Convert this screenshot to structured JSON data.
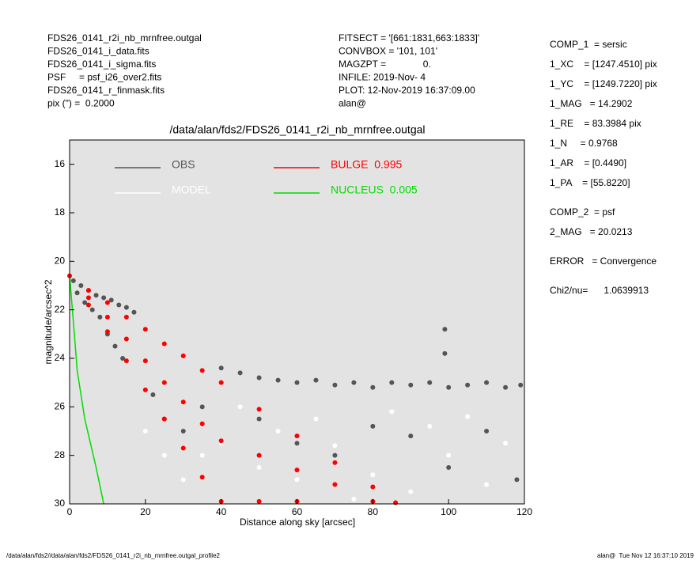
{
  "header": {
    "left": [
      "FDS26_0141_r2i_nb_mrnfree.outgal",
      "FDS26_0141_i_data.fits",
      "FDS26_0141_i_sigma.fits",
      "PSF     = psf_i26_over2.fits",
      "FDS26_0141_r_finmask.fits",
      "pix (\") =  0.2000"
    ],
    "middle": [
      "FITSECT = '[661:1831,663:1833]'",
      "CONVBOX = '101, 101'",
      "MAGZPT =              0.",
      "INFILE: 2019-Nov- 4",
      "PLOT: 12-Nov-2019 16:37:09.00",
      "alan@"
    ],
    "right": [
      "COMP_1  = sersic",
      "1_XC    = [1247.4510] pix",
      "1_YC    = [1249.7220] pix",
      "1_MAG   = 14.2902",
      "1_RE    = 83.3984 pix",
      "1_N     = 0.9768",
      "1_AR    = [0.4490]",
      "1_PA    = [55.8220]",
      "COMP_2  = psf",
      "2_MAG   = 20.0213",
      "ERROR   = Convergence",
      "Chi2/nu=      1.0639913"
    ]
  },
  "footer": {
    "left": "/data/alan/fds2//data/alan/fds2/FDS26_0141_r2i_nb_mrnfree.outgal_profile2",
    "right": "alan@  Tue Nov 12 16:37:10 2019"
  },
  "chart_data": {
    "type": "scatter",
    "title": "/data/alan/fds2/FDS26_0141_r2i_nb_mrnfree.outgal",
    "xlabel": "Distance along sky [arcsec]",
    "ylabel": "magnitude/arcsec^2",
    "xlim": [
      0,
      120
    ],
    "ylim": [
      30,
      15
    ],
    "xticks": [
      0,
      20,
      40,
      60,
      80,
      100,
      120
    ],
    "yticks": [
      16,
      18,
      20,
      22,
      24,
      26,
      28,
      30
    ],
    "background": "#e3e3e3",
    "series": [
      {
        "name": "OBS",
        "color": "#555555",
        "mode": "marker",
        "x": [
          1,
          2,
          3,
          4,
          5,
          6,
          7,
          8,
          9,
          10,
          11,
          12,
          13,
          14,
          15,
          17,
          22,
          25,
          30,
          35,
          40,
          45,
          50,
          55,
          60,
          65,
          70,
          75,
          80,
          85,
          90,
          95,
          100,
          105,
          110,
          115,
          119,
          50,
          60,
          70,
          80,
          90,
          100,
          110,
          118,
          99,
          99
        ],
        "values": [
          20.8,
          21.3,
          21.0,
          21.7,
          21.2,
          22.0,
          21.4,
          22.3,
          21.5,
          23.0,
          21.6,
          23.5,
          21.8,
          24.0,
          21.9,
          22.1,
          25.5,
          26.5,
          27.0,
          26.0,
          24.4,
          24.6,
          24.8,
          24.9,
          25.0,
          24.9,
          25.1,
          25.0,
          25.2,
          25.0,
          25.1,
          25.0,
          25.2,
          25.1,
          25.0,
          25.2,
          25.1,
          26.5,
          27.5,
          28.0,
          26.8,
          27.2,
          28.5,
          27.0,
          29.0,
          22.8,
          23.8
        ]
      },
      {
        "name": "MODEL",
        "color": "#ffffff",
        "mode": "marker",
        "x": [
          20,
          25,
          30,
          35,
          40,
          45,
          50,
          55,
          60,
          65,
          70,
          75,
          80,
          85,
          90,
          95,
          100,
          105,
          110,
          115
        ],
        "values": [
          27.0,
          28.0,
          29.0,
          28.0,
          27.5,
          26.0,
          28.5,
          27.0,
          29.0,
          26.5,
          27.6,
          29.8,
          28.8,
          26.2,
          29.5,
          26.8,
          28.0,
          26.4,
          29.2,
          27.5
        ]
      },
      {
        "name": "BULGE  0.995",
        "color": "#ff0000",
        "mode": "marker",
        "x": [
          0,
          5,
          5,
          5,
          10,
          10,
          10,
          15,
          15,
          15,
          20,
          20,
          20,
          25,
          25,
          25,
          30,
          30,
          30,
          35,
          35,
          35,
          40,
          40,
          40,
          50,
          50,
          50,
          60,
          60,
          60,
          70,
          70,
          80,
          80,
          86
        ],
        "values": [
          20.6,
          21.2,
          21.5,
          21.8,
          21.7,
          22.3,
          22.9,
          22.3,
          23.2,
          24.1,
          22.8,
          24.1,
          25.3,
          23.4,
          25.0,
          26.5,
          23.9,
          25.8,
          27.7,
          24.5,
          26.7,
          28.9,
          25.0,
          27.4,
          29.9,
          26.1,
          28.0,
          29.9,
          27.2,
          28.6,
          29.9,
          28.3,
          29.2,
          29.3,
          29.9,
          29.95
        ]
      },
      {
        "name": "NUCLEUS  0.005",
        "color": "#00dd00",
        "mode": "line",
        "x": [
          0,
          1,
          2,
          4,
          5.5,
          7,
          9
        ],
        "values": [
          20.6,
          22.5,
          24.5,
          26.5,
          27.5,
          28.5,
          30
        ]
      }
    ]
  }
}
